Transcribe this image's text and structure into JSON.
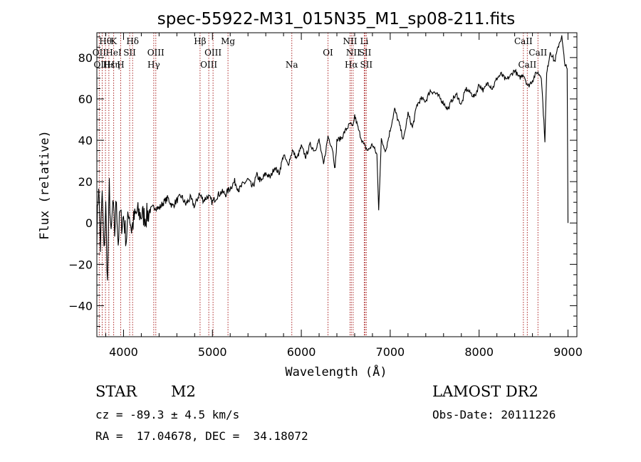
{
  "chart_data": {
    "type": "line",
    "title": "spec-55922-M31_015N35_M1_sp08-211.fits",
    "xlabel": "Wavelength (Å)",
    "ylabel": "Flux (relative)",
    "xlim": [
      3700,
      9100
    ],
    "ylim": [
      -55,
      92
    ],
    "xticks": [
      4000,
      5000,
      6000,
      7000,
      8000,
      9000
    ],
    "yticks": [
      -40,
      -20,
      0,
      20,
      40,
      60,
      80
    ],
    "grid": false,
    "series": [
      {
        "name": "spectrum",
        "x": [
          3700,
          3720,
          3740,
          3760,
          3780,
          3800,
          3820,
          3840,
          3860,
          3880,
          3900,
          3920,
          3940,
          3960,
          3980,
          4000,
          4030,
          4060,
          4090,
          4120,
          4150,
          4200,
          4250,
          4300,
          4350,
          4400,
          4450,
          4500,
          4550,
          4600,
          4650,
          4700,
          4750,
          4800,
          4850,
          4900,
          4950,
          5000,
          5050,
          5100,
          5150,
          5200,
          5250,
          5300,
          5350,
          5400,
          5450,
          5500,
          5550,
          5600,
          5650,
          5700,
          5750,
          5800,
          5850,
          5900,
          5950,
          6000,
          6050,
          6100,
          6150,
          6200,
          6250,
          6300,
          6350,
          6380,
          6400,
          6450,
          6500,
          6550,
          6580,
          6600,
          6650,
          6700,
          6750,
          6800,
          6850,
          6870,
          6900,
          6950,
          7000,
          7050,
          7100,
          7150,
          7200,
          7250,
          7300,
          7350,
          7400,
          7450,
          7500,
          7550,
          7600,
          7650,
          7700,
          7750,
          7800,
          7850,
          7900,
          7950,
          8000,
          8050,
          8100,
          8150,
          8200,
          8250,
          8300,
          8350,
          8400,
          8450,
          8500,
          8550,
          8600,
          8650,
          8700,
          8740,
          8760,
          8800,
          8850,
          8900,
          8930,
          8960,
          8990,
          9000
        ],
        "values": [
          -5,
          20,
          -12,
          15,
          -15,
          8,
          -30,
          18,
          -8,
          10,
          -5,
          12,
          -10,
          5,
          0,
          3,
          -8,
          6,
          -3,
          2,
          5,
          4,
          3,
          6,
          8,
          7,
          10,
          12,
          8,
          11,
          13,
          9,
          12,
          8,
          14,
          11,
          13,
          10,
          13,
          15,
          14,
          17,
          20,
          16,
          19,
          21,
          17,
          23,
          20,
          24,
          22,
          27,
          24,
          33,
          28,
          35,
          31,
          37,
          32,
          38,
          35,
          40,
          28,
          42,
          36,
          26,
          40,
          41,
          45,
          48,
          46,
          52,
          44,
          38,
          35,
          38,
          33,
          7,
          40,
          35,
          45,
          55,
          48,
          40,
          53,
          46,
          57,
          60,
          59,
          64,
          63,
          61,
          58,
          55,
          60,
          62,
          57,
          65,
          63,
          61,
          67,
          64,
          68,
          65,
          70,
          72,
          69,
          71,
          74,
          70,
          72,
          66,
          69,
          73,
          71,
          40,
          72,
          83,
          78,
          87,
          90,
          78,
          74,
          0
        ]
      }
    ],
    "lines": [
      {
        "label": "Hθ",
        "x": 3797,
        "row": 1
      },
      {
        "label": "OII",
        "x": 3727,
        "row": 2
      },
      {
        "label": "OIII",
        "x": 3760,
        "row": 3
      },
      {
        "label": "Hε",
        "x": 3835,
        "row": 3
      },
      {
        "label": "K",
        "x": 3889,
        "row": 1
      },
      {
        "label": "HeI",
        "x": 3889,
        "row": 2
      },
      {
        "label": "Hη",
        "x": 3889,
        "row": 3
      },
      {
        "label": "H",
        "x": 3968,
        "row": 3
      },
      {
        "label": "SII",
        "x": 4069,
        "row": 2
      },
      {
        "label": "Hδ",
        "x": 4102,
        "row": 1
      },
      {
        "label": "OIII",
        "x": 4363,
        "row": 2
      },
      {
        "label": "Hγ",
        "x": 4340,
        "row": 3
      },
      {
        "label": "Hβ",
        "x": 4861,
        "row": 1
      },
      {
        "label": "OIII",
        "x": 5007,
        "row": 2
      },
      {
        "label": "OIII",
        "x": 4959,
        "row": 3
      },
      {
        "label": "Mg",
        "x": 5175,
        "row": 1
      },
      {
        "label": "Na",
        "x": 5893,
        "row": 3
      },
      {
        "label": "OI",
        "x": 6300,
        "row": 2
      },
      {
        "label": "NII",
        "x": 6548,
        "row": 1
      },
      {
        "label": "NII",
        "x": 6583,
        "row": 2
      },
      {
        "label": "Hα",
        "x": 6563,
        "row": 3
      },
      {
        "label": "Li",
        "x": 6708,
        "row": 1
      },
      {
        "label": "SII",
        "x": 6717,
        "row": 2
      },
      {
        "label": "SII",
        "x": 6731,
        "row": 3
      },
      {
        "label": "CaII",
        "x": 8498,
        "row": 1
      },
      {
        "label": "CaII",
        "x": 8662,
        "row": 2
      },
      {
        "label": "CaII",
        "x": 8542,
        "row": 3
      }
    ],
    "line_x_positions": [
      3727,
      3760,
      3797,
      3835,
      3889,
      3968,
      4069,
      4102,
      4340,
      4363,
      4861,
      4959,
      5007,
      5175,
      5893,
      6300,
      6548,
      6563,
      6583,
      6708,
      6717,
      6731,
      8498,
      8542,
      8662
    ]
  },
  "info": {
    "object_class": "STAR",
    "subclass": "M2",
    "survey": "LAMOST DR2",
    "cz": "cz = -89.3 ± 4.5 km/s",
    "obs_date": "Obs-Date: 20111226",
    "coords": "RA =  17.04678, DEC =  34.18072"
  }
}
